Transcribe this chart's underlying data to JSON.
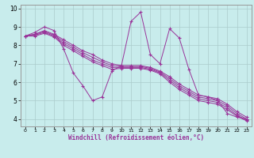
{
  "xlabel": "Windchill (Refroidissement éolien,°C)",
  "background_color": "#c8ecec",
  "line_color": "#993399",
  "grid_color": "#aacccc",
  "x_ticks": [
    0,
    1,
    2,
    3,
    4,
    5,
    6,
    7,
    8,
    9,
    10,
    11,
    12,
    13,
    14,
    15,
    16,
    17,
    18,
    19,
    20,
    21,
    22,
    23
  ],
  "y_ticks": [
    4,
    5,
    6,
    7,
    8,
    9,
    10
  ],
  "ylim": [
    3.6,
    10.2
  ],
  "xlim": [
    -0.5,
    23.5
  ],
  "series": {
    "spike": [
      8.5,
      8.7,
      9.0,
      8.8,
      7.8,
      6.5,
      5.8,
      5.0,
      5.2,
      6.6,
      6.9,
      9.3,
      9.8,
      7.5,
      7.0,
      8.9,
      8.4,
      6.7,
      5.3,
      5.2,
      5.0,
      4.3,
      4.1,
      4.0
    ],
    "smooth1": [
      8.5,
      8.6,
      8.8,
      8.6,
      8.3,
      8.0,
      7.7,
      7.5,
      7.2,
      7.0,
      6.9,
      6.9,
      6.9,
      6.8,
      6.6,
      6.3,
      5.9,
      5.6,
      5.3,
      5.2,
      5.1,
      4.8,
      4.4,
      4.1
    ],
    "smooth2": [
      8.5,
      8.6,
      8.75,
      8.55,
      8.2,
      7.9,
      7.6,
      7.35,
      7.1,
      6.9,
      6.85,
      6.85,
      6.85,
      6.75,
      6.55,
      6.2,
      5.8,
      5.5,
      5.2,
      5.1,
      5.0,
      4.7,
      4.3,
      4.0
    ],
    "smooth3": [
      8.5,
      8.55,
      8.7,
      8.5,
      8.1,
      7.8,
      7.5,
      7.2,
      7.0,
      6.8,
      6.8,
      6.8,
      6.8,
      6.7,
      6.5,
      6.1,
      5.7,
      5.4,
      5.1,
      5.0,
      4.9,
      4.6,
      4.2,
      3.95
    ],
    "smooth4": [
      8.5,
      8.5,
      8.65,
      8.45,
      8.0,
      7.7,
      7.4,
      7.1,
      6.9,
      6.7,
      6.75,
      6.75,
      6.75,
      6.65,
      6.45,
      6.0,
      5.6,
      5.3,
      5.0,
      4.9,
      4.8,
      4.5,
      4.15,
      3.9
    ]
  }
}
